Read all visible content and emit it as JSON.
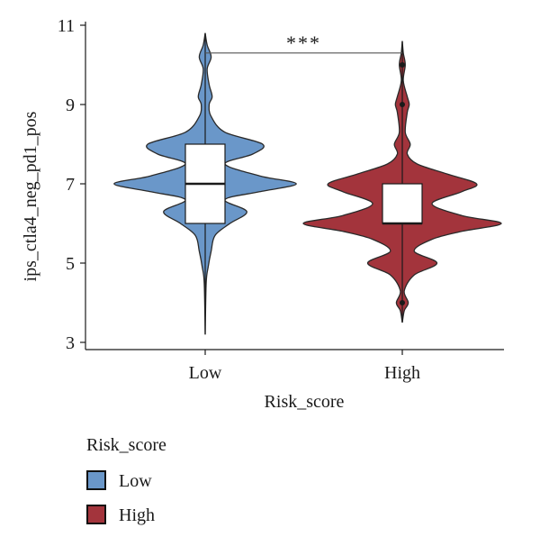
{
  "chart_data": {
    "type": "violin",
    "xlabel": "Risk_score",
    "ylabel": "ips_ctla4_neg_pd1_pos",
    "categories": [
      "Low",
      "High"
    ],
    "ylim": [
      3,
      11
    ],
    "yticks": [
      3,
      5,
      7,
      9,
      11
    ],
    "series": [
      {
        "name": "Low",
        "color": "#6a97c9",
        "min": 3.2,
        "q1": 6,
        "median": 7,
        "q3": 8,
        "max": 10.8,
        "density": [
          [
            3.2,
            0.005
          ],
          [
            4.5,
            0.01
          ],
          [
            4.9,
            0.03
          ],
          [
            5.3,
            0.06
          ],
          [
            5.7,
            0.1
          ],
          [
            6.0,
            0.25
          ],
          [
            6.3,
            0.42
          ],
          [
            6.6,
            0.2
          ],
          [
            6.8,
            0.55
          ],
          [
            7.0,
            0.92
          ],
          [
            7.2,
            0.55
          ],
          [
            7.5,
            0.2
          ],
          [
            7.75,
            0.48
          ],
          [
            8.0,
            0.58
          ],
          [
            8.3,
            0.2
          ],
          [
            8.7,
            0.06
          ],
          [
            9.0,
            0.04
          ],
          [
            9.2,
            0.07
          ],
          [
            9.5,
            0.04
          ],
          [
            9.9,
            0.02
          ],
          [
            10.2,
            0.06
          ],
          [
            10.5,
            0.02
          ],
          [
            10.8,
            0.005
          ]
        ]
      },
      {
        "name": "High",
        "color": "#a3343c",
        "min": 3.5,
        "q1": 6,
        "median": 6,
        "q3": 7,
        "max": 10.6,
        "outliers": [
          4,
          9,
          10
        ],
        "density": [
          [
            3.5,
            0.005
          ],
          [
            3.8,
            0.02
          ],
          [
            4.0,
            0.06
          ],
          [
            4.3,
            0.02
          ],
          [
            4.7,
            0.12
          ],
          [
            5.0,
            0.35
          ],
          [
            5.3,
            0.12
          ],
          [
            5.6,
            0.3
          ],
          [
            5.8,
            0.6
          ],
          [
            6.0,
            1.0
          ],
          [
            6.2,
            0.6
          ],
          [
            6.5,
            0.3
          ],
          [
            6.8,
            0.6
          ],
          [
            7.0,
            0.75
          ],
          [
            7.25,
            0.45
          ],
          [
            7.5,
            0.15
          ],
          [
            7.75,
            0.05
          ],
          [
            8.0,
            0.08
          ],
          [
            8.3,
            0.03
          ],
          [
            8.8,
            0.05
          ],
          [
            9.0,
            0.07
          ],
          [
            9.2,
            0.05
          ],
          [
            9.6,
            0.01
          ],
          [
            10.0,
            0.03
          ],
          [
            10.3,
            0.01
          ],
          [
            10.6,
            0.005
          ]
        ]
      }
    ],
    "annotation": {
      "text": "***",
      "from": "Low",
      "to": "High",
      "y": 10.3
    },
    "legend": {
      "title": "Risk_score",
      "items": [
        {
          "label": "Low",
          "color": "#6a97c9"
        },
        {
          "label": "High",
          "color": "#a3343c"
        }
      ],
      "placement": "bottom-left"
    }
  }
}
